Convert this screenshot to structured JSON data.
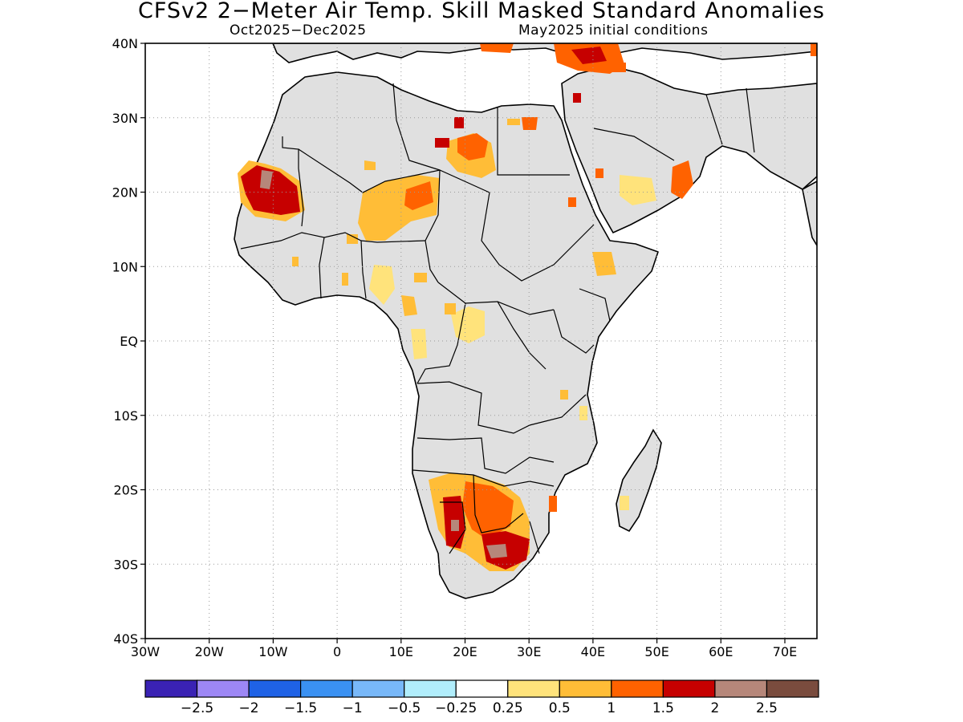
{
  "title": "CFSv2 2−Meter Air Temp. Skill Masked Standard Anomalies",
  "period": "Oct2025−Dec2025",
  "initial_conditions": "May2025 initial conditions",
  "lat_labels": [
    "40N",
    "30N",
    "20N",
    "10N",
    "EQ",
    "10S",
    "20S",
    "30S",
    "40S"
  ],
  "lon_labels": [
    "30W",
    "20W",
    "10W",
    "0",
    "10E",
    "20E",
    "30E",
    "40E",
    "50E",
    "60E",
    "70E"
  ],
  "colorbar": {
    "colors": [
      "#3a22b4",
      "#9d87f5",
      "#1f62e6",
      "#3a91f2",
      "#78b8f9",
      "#b1eefc",
      "#ffffff",
      "#ffe37b",
      "#ffbd37",
      "#ff6200",
      "#c60000",
      "#b6877a",
      "#7a4c3e"
    ],
    "labels": [
      "−2.5",
      "−2",
      "−1.5",
      "−1",
      "−0.5",
      "−0.25",
      "0.25",
      "0.5",
      "1",
      "1.5",
      "2",
      "2.5"
    ]
  },
  "map": {
    "land_color": "#e0e0e0",
    "masked_color": "#ffffff",
    "grid_style": "dotted"
  }
}
